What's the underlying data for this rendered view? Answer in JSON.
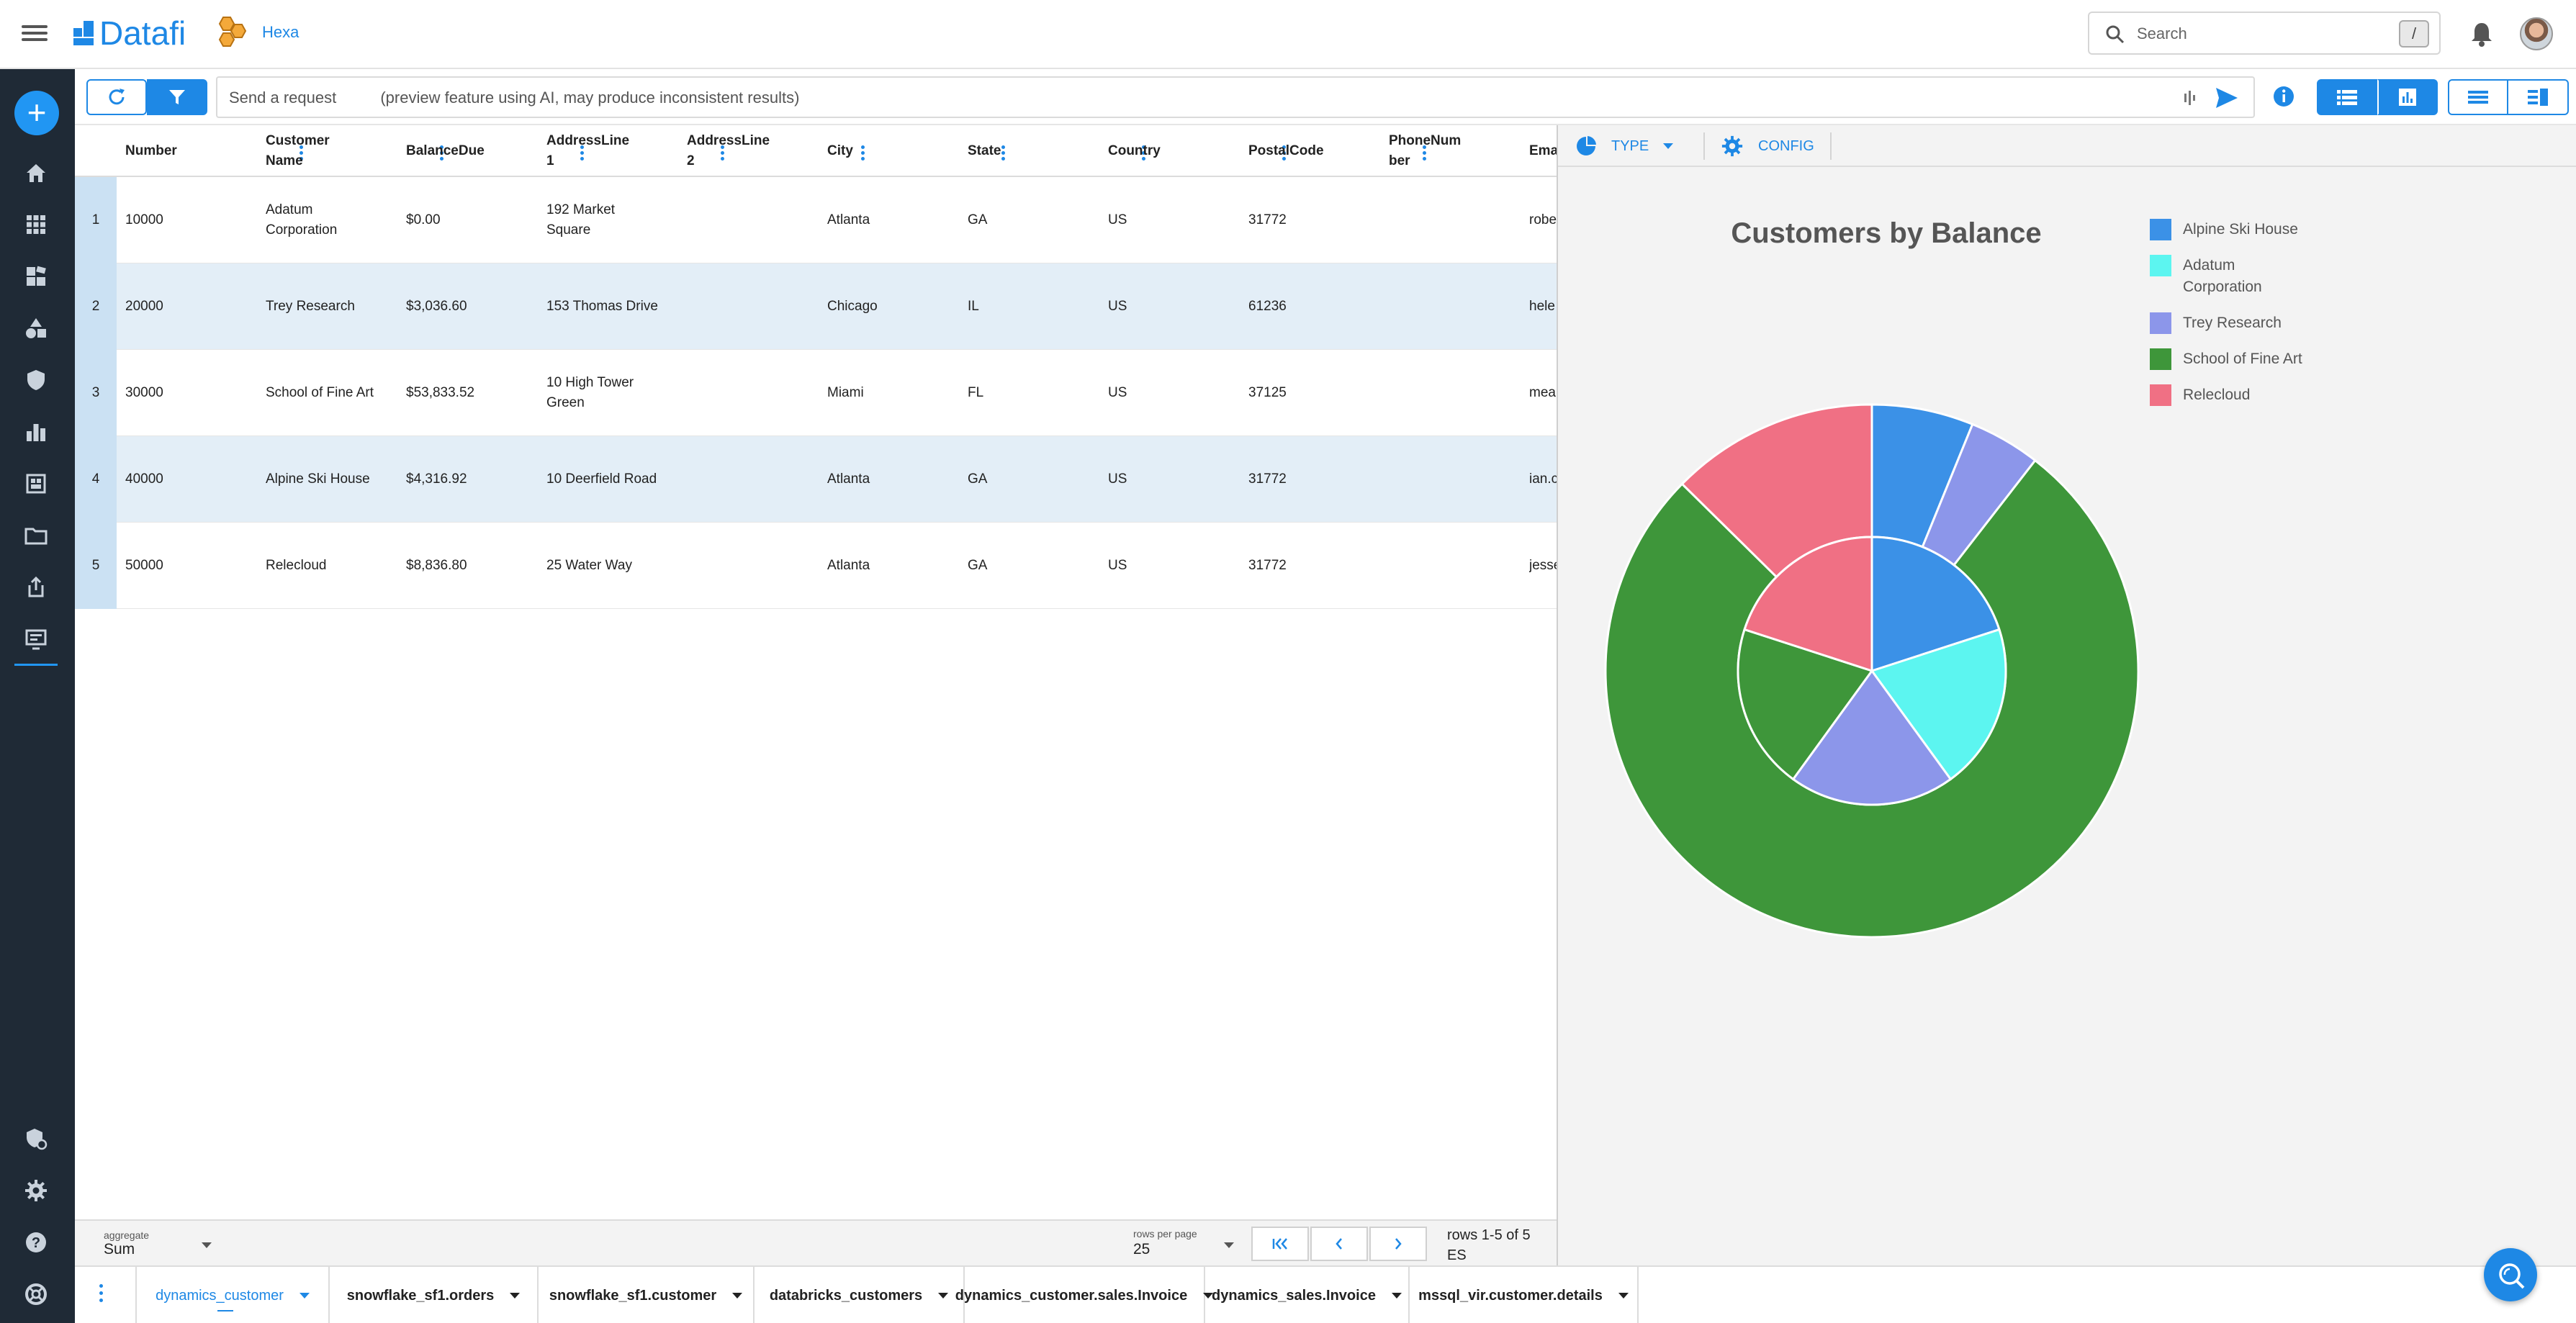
{
  "brand": {
    "name": "Datafi",
    "org_name": "Hexa"
  },
  "topbar": {
    "search_placeholder": "Search",
    "search_shortcut": "/",
    "icons": [
      "menu-icon",
      "search-icon",
      "bell-icon",
      "avatar"
    ]
  },
  "sidebar": {
    "add_label": "+",
    "items": [
      "home-icon",
      "apps-grid-icon",
      "dashboard-icon",
      "shapes-icon",
      "shield-icon",
      "bar-chart-icon",
      "dataset-icon",
      "folder-icon",
      "share-icon",
      "monitor-icon",
      "security-admin-icon",
      "gear-icon",
      "help-icon",
      "life-ring-icon"
    ]
  },
  "toolbar": {
    "request_placeholder": "Send a request          (preview feature using AI, may produce inconsistent results)"
  },
  "grid": {
    "columns": [
      "Number",
      "Customer Name",
      "BalanceDue",
      "AddressLine 1",
      "AddressLine 2",
      "City",
      "State",
      "Country",
      "PostalCode",
      "PhoneNumber",
      "Ema"
    ],
    "rows": [
      {
        "n": "1",
        "cells": [
          "10000",
          "Adatum Corporation",
          "$0.00",
          "192 Market Square",
          "",
          "Atlanta",
          "GA",
          "US",
          "31772",
          "",
          "robe"
        ]
      },
      {
        "n": "2",
        "cells": [
          "20000",
          "Trey Research",
          "$3,036.60",
          "153 Thomas Drive",
          "",
          "Chicago",
          "IL",
          "US",
          "61236",
          "",
          "hele"
        ]
      },
      {
        "n": "3",
        "cells": [
          "30000",
          "School of Fine Art",
          "$53,833.52",
          "10 High Tower Green",
          "",
          "Miami",
          "FL",
          "US",
          "37125",
          "",
          "mea"
        ]
      },
      {
        "n": "4",
        "cells": [
          "40000",
          "Alpine Ski House",
          "$4,316.92",
          "10 Deerfield Road",
          "",
          "Atlanta",
          "GA",
          "US",
          "31772",
          "",
          "ian.c"
        ]
      },
      {
        "n": "5",
        "cells": [
          "50000",
          "Relecloud",
          "$8,836.80",
          "25 Water Way",
          "",
          "Atlanta",
          "GA",
          "US",
          "31772",
          "",
          "jesse"
        ]
      }
    ]
  },
  "chart_toolbar": {
    "type_label": "TYPE",
    "config_label": "CONFIG"
  },
  "chart_data": {
    "type": "pie",
    "title": "Customers by Balance",
    "legend_position": "top-right",
    "series": [
      {
        "name": "Alpine Ski House",
        "color": "#3b91e7"
      },
      {
        "name": "Adatum Corporation",
        "color": "#5cf5f0"
      },
      {
        "name": "Trey Research",
        "color": "#8c96ea"
      },
      {
        "name": "School of Fine Art",
        "color": "#3e963a"
      },
      {
        "name": "Relecloud",
        "color": "#f07084"
      }
    ],
    "rings": [
      {
        "ring": "outer",
        "values": [
          {
            "label": "Alpine Ski House",
            "value": 4316.92
          },
          {
            "label": "Adatum Corporation",
            "value": 0.0
          },
          {
            "label": "Trey Research",
            "value": 3036.6
          },
          {
            "label": "School of Fine Art",
            "value": 53833.52
          },
          {
            "label": "Relecloud",
            "value": 8836.8
          }
        ]
      },
      {
        "ring": "inner",
        "values": [
          {
            "label": "Alpine Ski House",
            "value": 1
          },
          {
            "label": "Adatum Corporation",
            "value": 1
          },
          {
            "label": "Trey Research",
            "value": 1
          },
          {
            "label": "School of Fine Art",
            "value": 1
          },
          {
            "label": "Relecloud",
            "value": 1
          }
        ]
      }
    ]
  },
  "footer": {
    "aggregate_label": "aggregate",
    "aggregate_value": "Sum",
    "rows_per_page_label": "rows per page",
    "rows_per_page_value": "25",
    "rows_info": "rows 1-5 of 5",
    "rows_info_extra": "ES"
  },
  "tabs": [
    {
      "label": "dynamics_customer",
      "active": true
    },
    {
      "label": "snowflake_sf1.orders",
      "active": false
    },
    {
      "label": "snowflake_sf1.customer",
      "active": false
    },
    {
      "label": "databricks_customers",
      "active": false
    },
    {
      "label": "dynamics_customer.sales.Invoice",
      "active": false
    },
    {
      "label": "dynamics_sales.Invoice",
      "active": false
    },
    {
      "label": "mssql_vir.customer.details",
      "active": false
    }
  ],
  "colors": {
    "accent": "#1e88e5",
    "sidebar_bg": "#1f2a36",
    "row_alt": "#e3eef7"
  }
}
